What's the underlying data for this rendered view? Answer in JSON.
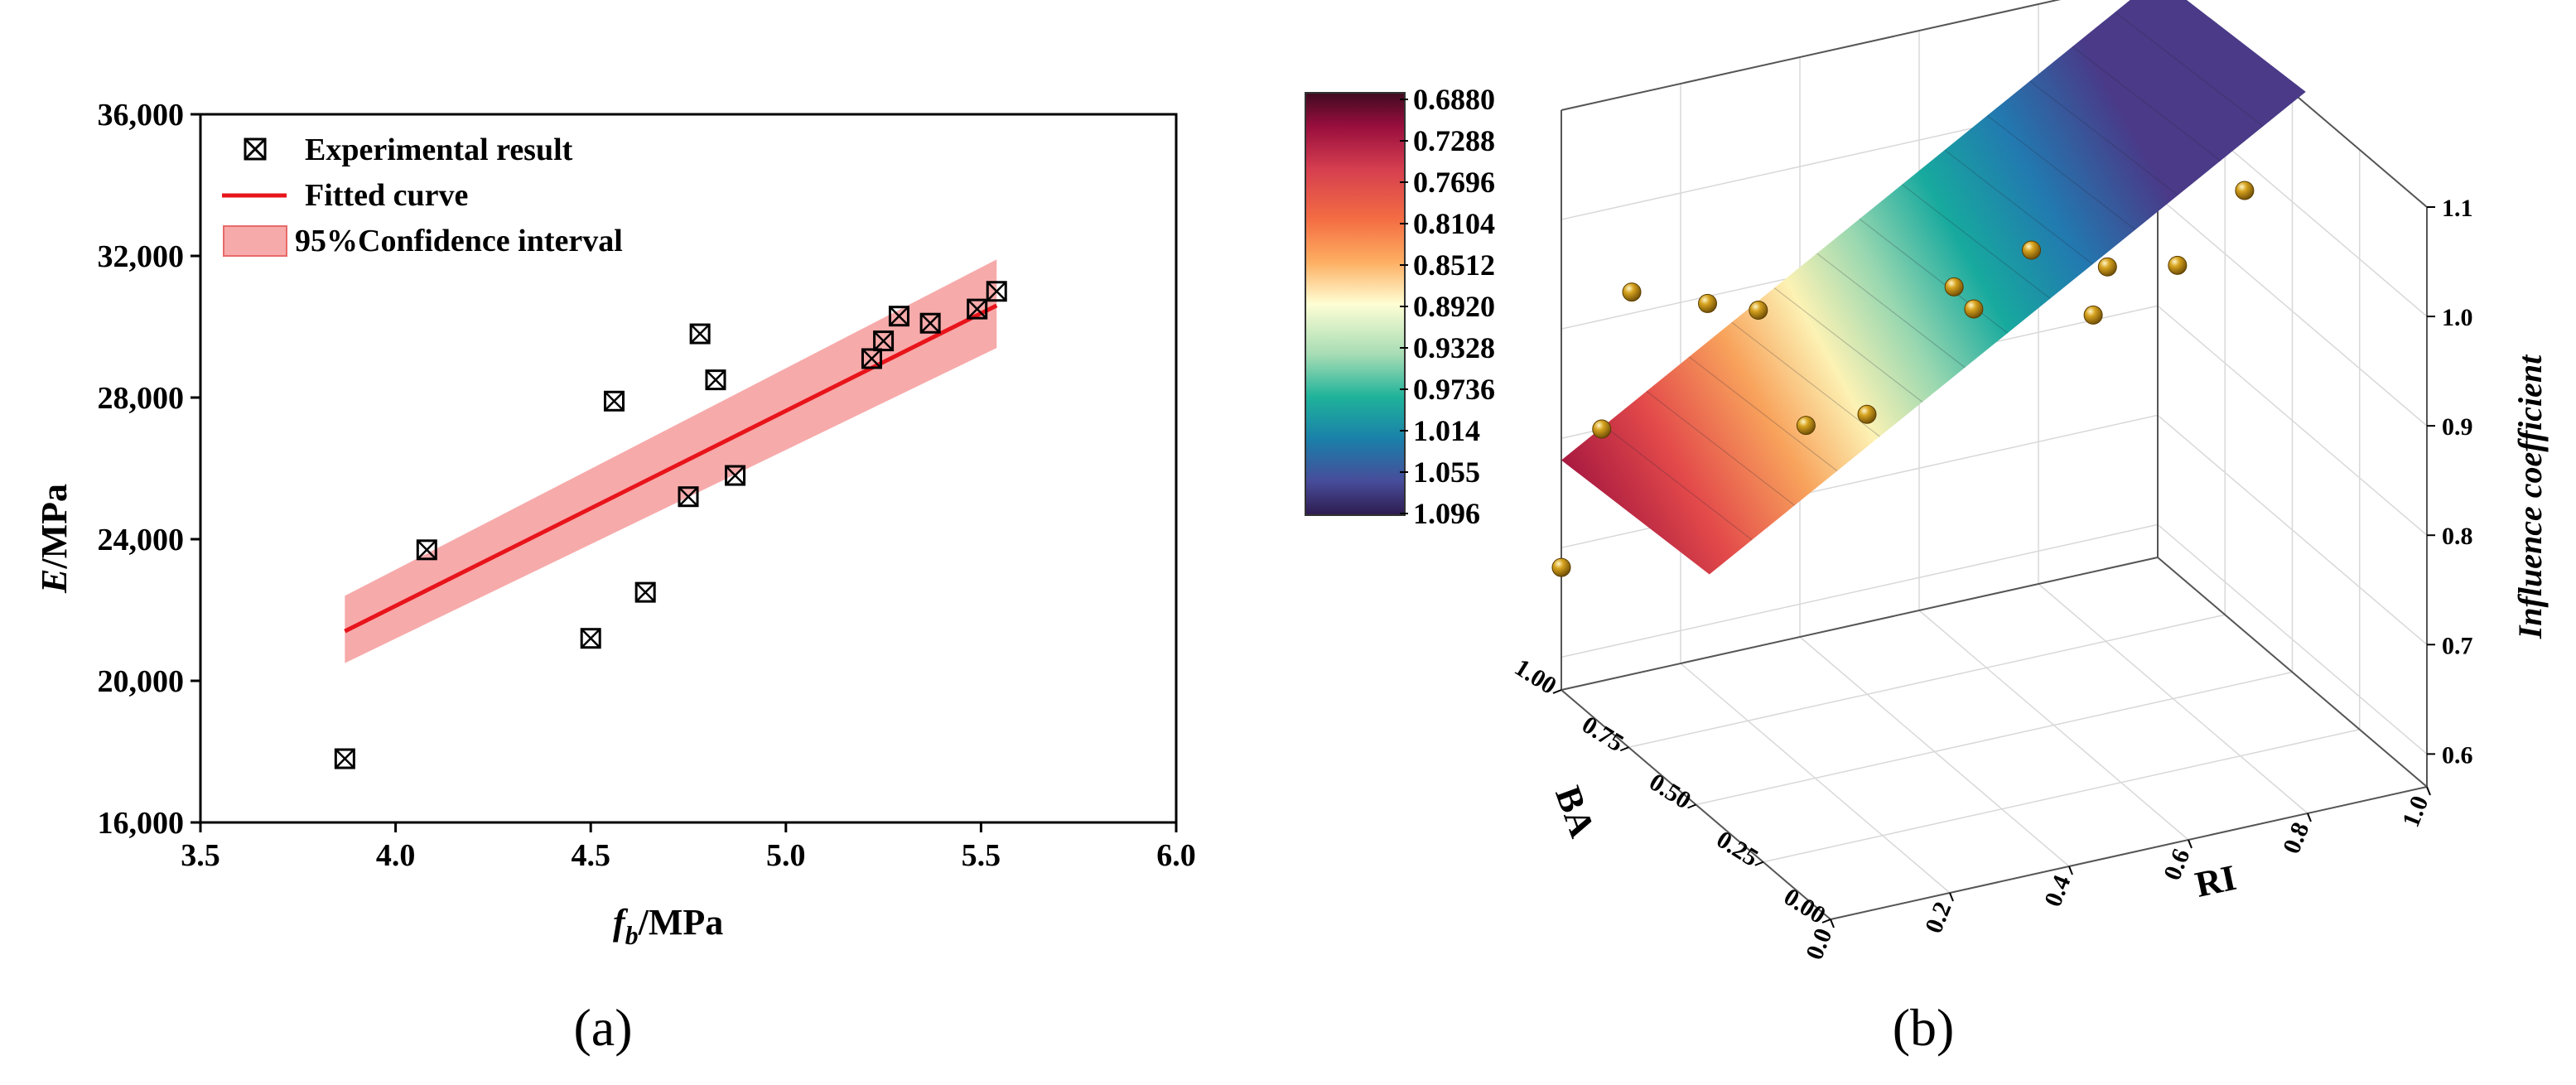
{
  "panels": {
    "a_label": "(a)",
    "b_label": "(b)"
  },
  "chart_data": [
    {
      "type": "scatter",
      "panel": "(a)",
      "title": "",
      "xlabel_main": "f",
      "xlabel_sub": "b",
      "xlabel_unit": "/MPa",
      "ylabel_main": "E",
      "ylabel_unit": "/MPa",
      "xlim": [
        3.5,
        6.0
      ],
      "ylim": [
        16000,
        36000
      ],
      "xticks": [
        3.5,
        4.0,
        4.5,
        5.0,
        5.5,
        6.0
      ],
      "xtick_labels": [
        "3.5",
        "4.0",
        "4.5",
        "5.0",
        "5.5",
        "6.0"
      ],
      "yticks": [
        16000,
        20000,
        24000,
        28000,
        32000,
        36000
      ],
      "ytick_labels": [
        "16,000",
        "20,000",
        "24,000",
        "28,000",
        "32,000",
        "36,000"
      ],
      "legend": {
        "position": "top-left",
        "experimental": "Experimental result",
        "fitted": "Fitted curve",
        "confidence": "95%Confidence interval"
      },
      "experimental": {
        "x": [
          3.87,
          4.08,
          4.5,
          4.56,
          4.64,
          4.75,
          4.78,
          4.82,
          4.87,
          5.22,
          5.25,
          5.29,
          5.37,
          5.49,
          5.54
        ],
        "y": [
          17800,
          23700,
          21200,
          27900,
          22500,
          25200,
          29800,
          28500,
          25800,
          29100,
          29600,
          30300,
          30100,
          30500,
          31000
        ]
      },
      "fitted_curve": {
        "x": [
          3.87,
          5.54
        ],
        "y": [
          21400,
          30600
        ]
      },
      "confidence_band": {
        "x": [
          3.87,
          5.54
        ],
        "upper": [
          22400,
          31900
        ],
        "lower": [
          20500,
          29400
        ]
      },
      "colors": {
        "fit": "#e8141b",
        "band": "#f7aaaa",
        "marker": "#000000"
      }
    },
    {
      "type": "surface3d",
      "panel": "(b)",
      "xlabel": "BA",
      "ylabel": "RI",
      "zlabel": "Influence coefficient",
      "ba_ticks": [
        "0.00",
        "0.25",
        "0.50",
        "0.75",
        "1.00"
      ],
      "ri_ticks": [
        "0.0",
        "0.2",
        "0.4",
        "0.6",
        "0.8",
        "1.0"
      ],
      "z_ticks": [
        "0.6",
        "0.7",
        "0.8",
        "0.9",
        "1.0",
        "1.1"
      ],
      "zlim": [
        0.57,
        1.1
      ],
      "colorbar": {
        "labels": [
          "0.6880",
          "0.7288",
          "0.7696",
          "0.8104",
          "0.8512",
          "0.8920",
          "0.9328",
          "0.9736",
          "1.014",
          "1.055",
          "1.096"
        ],
        "colormap": "Spectral (reversed)"
      },
      "points": {
        "ba": [
          1.0,
          0.85,
          0.96,
          0.9,
          0.8,
          0.8,
          0.64,
          0.56,
          0.62,
          0.45,
          0.42,
          0.5,
          0.55,
          0.5
        ],
        "ri": [
          0.0,
          0.0,
          0.1,
          0.2,
          0.24,
          0.32,
          0.35,
          0.46,
          0.52,
          0.54,
          0.63,
          0.69,
          0.83,
          0.92
        ],
        "z": [
          0.682,
          0.84,
          0.93,
          0.92,
          0.93,
          0.815,
          0.855,
          0.975,
          0.935,
          1.022,
          0.958,
          0.978,
          0.952,
          1.02
        ]
      },
      "point_color": "#b8860b"
    }
  ]
}
